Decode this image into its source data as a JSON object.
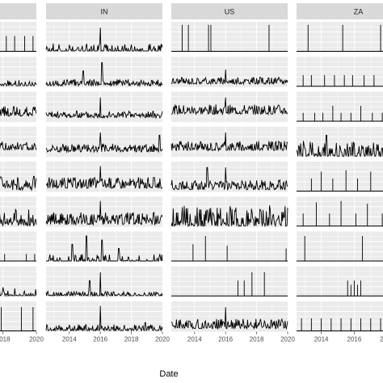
{
  "chart_data": {
    "type": "line",
    "facet_columns": [
      "",
      "IN",
      "US",
      "ZA"
    ],
    "facet_rows": 9,
    "xlabel": "Date",
    "x_ticks": [
      "2014",
      "2016",
      "2018",
      "2020"
    ],
    "xlim": [
      "2012-07",
      "2020-01"
    ],
    "ylim": [
      0,
      1
    ],
    "grid": true,
    "panel_background": "#ebebeb",
    "strip_background": "#d9d9d9",
    "line_color": "#000000",
    "series": {
      "col0": [
        {
          "row": 0,
          "style": "spike",
          "spikes": [
            [
              2018.2,
              0.55
            ],
            [
              2018.7,
              0.55
            ],
            [
              2019.3,
              0.55
            ],
            [
              2019.8,
              0.55
            ]
          ]
        },
        {
          "row": 1,
          "style": "noisy",
          "base": 0.05,
          "amp": 0.18,
          "density": 0.6,
          "seed": 11
        },
        {
          "row": 2,
          "style": "noisy",
          "base": 0.18,
          "amp": 0.35,
          "density": 1.0,
          "seed": 12
        },
        {
          "row": 3,
          "style": "noisy",
          "base": 0.22,
          "amp": 0.3,
          "density": 1.0,
          "seed": 13
        },
        {
          "row": 4,
          "style": "noisy",
          "base": 0.1,
          "amp": 0.45,
          "density": 0.9,
          "seed": 14
        },
        {
          "row": 5,
          "style": "noisy",
          "base": 0.05,
          "amp": 0.55,
          "density": 0.8,
          "seed": 15
        },
        {
          "row": 6,
          "style": "spike",
          "spikes": [
            [
              2017.6,
              0.25
            ],
            [
              2018.1,
              0.25
            ],
            [
              2019.4,
              0.25
            ],
            [
              2019.9,
              0.25
            ]
          ]
        },
        {
          "row": 7,
          "style": "noisy",
          "base": 0.02,
          "amp": 0.3,
          "density": 0.5,
          "seed": 17
        },
        {
          "row": 8,
          "style": "spike",
          "spikes": [
            [
              2017.9,
              0.85
            ],
            [
              2019.1,
              0.85
            ],
            [
              2019.8,
              0.85
            ]
          ]
        }
      ],
      "col1": [
        {
          "row": 0,
          "style": "noisy",
          "base": 0.03,
          "amp": 0.25,
          "density": 0.5,
          "seed": 21,
          "peaks": [
            [
              2016.0,
              0.85
            ]
          ]
        },
        {
          "row": 1,
          "style": "noisy",
          "base": 0.05,
          "amp": 0.2,
          "density": 0.8,
          "seed": 22,
          "peaks": [
            [
              2016.1,
              0.85
            ],
            [
              2014.9,
              0.55
            ]
          ]
        },
        {
          "row": 2,
          "style": "noisy",
          "base": 0.12,
          "amp": 0.25,
          "density": 1.0,
          "seed": 23,
          "peaks": [
            [
              2016.0,
              0.85
            ]
          ]
        },
        {
          "row": 3,
          "style": "noisy",
          "base": 0.15,
          "amp": 0.3,
          "density": 1.0,
          "seed": 24,
          "peaks": [
            [
              2016.0,
              0.85
            ],
            [
              2019.8,
              0.75
            ]
          ]
        },
        {
          "row": 4,
          "style": "noisy",
          "base": 0.1,
          "amp": 0.4,
          "density": 1.0,
          "seed": 25,
          "peaks": [
            [
              2016.0,
              0.9
            ]
          ]
        },
        {
          "row": 5,
          "style": "noisy",
          "base": 0.05,
          "amp": 0.45,
          "density": 1.0,
          "seed": 26,
          "peaks": [
            [
              2016.0,
              0.9
            ]
          ]
        },
        {
          "row": 6,
          "style": "noisy",
          "base": 0.0,
          "amp": 0.25,
          "density": 0.35,
          "seed": 27,
          "peaks": [
            [
              2014.2,
              0.6
            ],
            [
              2015.1,
              0.9
            ],
            [
              2016.1,
              0.75
            ],
            [
              2017.2,
              0.45
            ]
          ]
        },
        {
          "row": 7,
          "style": "noisy",
          "base": 0.02,
          "amp": 0.15,
          "density": 0.55,
          "seed": 28,
          "peaks": [
            [
              2016.0,
              0.85
            ],
            [
              2015.3,
              0.55
            ]
          ]
        },
        {
          "row": 8,
          "style": "noisy",
          "base": 0.03,
          "amp": 0.2,
          "density": 0.7,
          "seed": 29,
          "peaks": [
            [
              2016.0,
              0.9
            ],
            [
              2018.9,
              0.3
            ]
          ]
        }
      ],
      "col2": [
        {
          "row": 0,
          "style": "spike",
          "spikes": [
            [
              2013.2,
              0.95
            ],
            [
              2013.6,
              0.95
            ],
            [
              2014.9,
              0.95
            ],
            [
              2015.05,
              0.95
            ],
            [
              2018.8,
              0.95
            ]
          ]
        },
        {
          "row": 1,
          "style": "noisy",
          "base": 0.08,
          "amp": 0.25,
          "density": 1.0,
          "seed": 31,
          "peaks": [
            [
              2016.0,
              0.6
            ]
          ]
        },
        {
          "row": 2,
          "style": "noisy",
          "base": 0.25,
          "amp": 0.35,
          "density": 1.0,
          "seed": 32,
          "peaks": [
            [
              2016.0,
              0.85
            ]
          ]
        },
        {
          "row": 3,
          "style": "noisy",
          "base": 0.2,
          "amp": 0.35,
          "density": 1.0,
          "seed": 33,
          "peaks": [
            [
              2016.0,
              0.85
            ]
          ]
        },
        {
          "row": 4,
          "style": "noisy",
          "base": 0.05,
          "amp": 0.35,
          "density": 1.0,
          "seed": 34,
          "peaks": [
            [
              2014.8,
              0.85
            ],
            [
              2016.0,
              0.85
            ]
          ]
        },
        {
          "row": 5,
          "style": "noisy",
          "base": 0.0,
          "amp": 0.75,
          "density": 0.9,
          "seed": 35
        },
        {
          "row": 6,
          "style": "spike",
          "spikes": [
            [
              2013.9,
              0.6
            ],
            [
              2014.7,
              0.9
            ],
            [
              2016.1,
              0.55
            ],
            [
              2019.9,
              0.45
            ]
          ]
        },
        {
          "row": 7,
          "style": "spike",
          "spikes": [
            [
              2016.8,
              0.55
            ],
            [
              2017.2,
              0.55
            ],
            [
              2017.7,
              0.85
            ],
            [
              2018.5,
              0.85
            ]
          ]
        },
        {
          "row": 8,
          "style": "noisy",
          "base": 0.08,
          "amp": 0.35,
          "density": 1.0,
          "seed": 38,
          "peaks": [
            [
              2016.0,
              0.85
            ]
          ]
        }
      ],
      "col3": [
        {
          "row": 0,
          "style": "spike",
          "spikes": [
            [
              2013.2,
              0.95
            ],
            [
              2015.3,
              0.95
            ],
            [
              2017.6,
              0.95
            ]
          ]
        },
        {
          "row": 1,
          "style": "spike",
          "spikes": [
            [
              2012.9,
              0.4
            ],
            [
              2013.4,
              0.4
            ],
            [
              2014.2,
              0.4
            ],
            [
              2014.8,
              0.4
            ],
            [
              2015.4,
              0.4
            ],
            [
              2015.9,
              0.4
            ],
            [
              2016.6,
              0.4
            ],
            [
              2017.2,
              0.4
            ],
            [
              2017.8,
              0.4
            ]
          ]
        },
        {
          "row": 2,
          "style": "spike",
          "spikes": [
            [
              2012.9,
              0.3
            ],
            [
              2013.6,
              0.3
            ],
            [
              2014.1,
              0.3
            ],
            [
              2014.7,
              0.55
            ],
            [
              2015.2,
              0.3
            ],
            [
              2015.8,
              0.3
            ],
            [
              2016.4,
              0.55
            ],
            [
              2017.1,
              0.3
            ],
            [
              2017.7,
              0.3
            ]
          ]
        },
        {
          "row": 3,
          "style": "noisy",
          "base": 0.0,
          "amp": 0.55,
          "density": 0.7,
          "seed": 44,
          "peaks": [
            [
              2014.3,
              0.75
            ]
          ]
        },
        {
          "row": 4,
          "style": "spike",
          "spikes": [
            [
              2013.4,
              0.45
            ],
            [
              2014.0,
              0.7
            ],
            [
              2014.7,
              0.45
            ],
            [
              2015.5,
              0.75
            ],
            [
              2016.2,
              0.45
            ],
            [
              2017.0,
              0.7
            ]
          ]
        },
        {
          "row": 5,
          "style": "spike",
          "spikes": [
            [
              2012.9,
              0.45
            ],
            [
              2013.7,
              0.85
            ],
            [
              2014.5,
              0.45
            ],
            [
              2015.2,
              0.9
            ],
            [
              2016.1,
              0.45
            ],
            [
              2016.8,
              0.8
            ],
            [
              2017.7,
              0.45
            ]
          ]
        },
        {
          "row": 6,
          "style": "spike",
          "spikes": [
            [
              2013.0,
              0.9
            ],
            [
              2016.5,
              0.9
            ]
          ]
        },
        {
          "row": 7,
          "style": "spike",
          "spikes": [
            [
              2015.6,
              0.55
            ],
            [
              2015.8,
              0.4
            ],
            [
              2016.0,
              0.55
            ],
            [
              2016.2,
              0.4
            ],
            [
              2016.4,
              0.55
            ],
            [
              2017.8,
              0.7
            ]
          ]
        },
        {
          "row": 8,
          "style": "spike",
          "spikes": [
            [
              2012.8,
              0.45
            ],
            [
              2013.4,
              0.45
            ],
            [
              2014.0,
              0.45
            ],
            [
              2014.6,
              0.45
            ],
            [
              2015.2,
              0.45
            ],
            [
              2015.8,
              0.45
            ],
            [
              2016.4,
              0.45
            ],
            [
              2017.0,
              0.45
            ],
            [
              2017.6,
              0.45
            ]
          ]
        }
      ]
    }
  }
}
